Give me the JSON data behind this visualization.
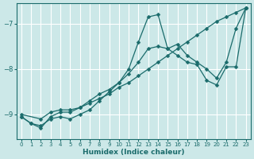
{
  "bg_color": "#cce8e8",
  "grid_color": "#ffffff",
  "line_color": "#1a6b6b",
  "xlabel": "Humidex (Indice chaleur)",
  "xlim": [
    -0.5,
    23.5
  ],
  "ylim": [
    -9.55,
    -6.55
  ],
  "yticks": [
    -9,
    -8,
    -7
  ],
  "xticks": [
    0,
    1,
    2,
    3,
    4,
    5,
    6,
    7,
    8,
    9,
    10,
    11,
    12,
    13,
    14,
    15,
    16,
    17,
    18,
    19,
    20,
    21,
    22,
    23
  ],
  "series": [
    {
      "x": [
        0,
        1,
        2,
        3,
        4,
        5,
        6,
        7,
        8,
        9,
        10,
        11,
        12,
        13,
        14,
        15,
        16,
        17,
        18,
        19,
        20,
        21,
        22,
        23
      ],
      "y": [
        -9.05,
        -9.2,
        -9.3,
        -9.05,
        -8.95,
        -8.95,
        -8.85,
        -8.75,
        -8.65,
        -8.55,
        -8.4,
        -8.3,
        -8.15,
        -8.0,
        -7.85,
        -7.7,
        -7.55,
        -7.4,
        -7.25,
        -7.1,
        -6.95,
        -6.85,
        -6.75,
        -6.65
      ],
      "marker": "D",
      "markersize": 2.5,
      "linewidth": 0.9
    },
    {
      "x": [
        0,
        1,
        2,
        3,
        4,
        5,
        6,
        7,
        8,
        9,
        10,
        11,
        12,
        13,
        14,
        15,
        16,
        17,
        18,
        19,
        20,
        21,
        22,
        23
      ],
      "y": [
        -9.05,
        -9.2,
        -9.25,
        -9.1,
        -9.05,
        -9.1,
        -9.0,
        -8.9,
        -8.7,
        -8.5,
        -8.3,
        -8.0,
        -7.4,
        -6.85,
        -6.8,
        -7.55,
        -7.45,
        -7.7,
        -7.85,
        -8.0,
        -8.2,
        -7.85,
        -7.1,
        -6.65
      ],
      "marker": "D",
      "markersize": 2.5,
      "linewidth": 0.9
    },
    {
      "x": [
        0,
        2,
        3,
        4,
        5,
        6,
        7,
        8,
        9,
        10,
        11,
        12,
        13,
        14,
        15,
        16,
        17,
        18,
        19,
        20,
        21,
        22,
        23
      ],
      "y": [
        -9.0,
        -9.1,
        -8.95,
        -8.9,
        -8.9,
        -8.85,
        -8.7,
        -8.55,
        -8.45,
        -8.3,
        -8.1,
        -7.85,
        -7.55,
        -7.5,
        -7.55,
        -7.7,
        -7.85,
        -7.9,
        -8.25,
        -8.35,
        -7.95,
        -7.95,
        -6.65
      ],
      "marker": "D",
      "markersize": 2.5,
      "linewidth": 0.9
    }
  ]
}
